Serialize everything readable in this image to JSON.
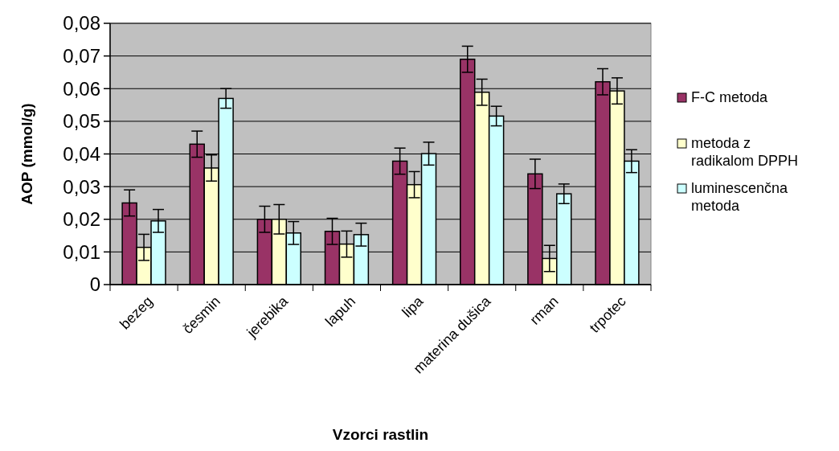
{
  "chart_data": {
    "type": "bar",
    "xlabel": "Vzorci rastlin",
    "ylabel": "AOP (mmol/g)",
    "categories": [
      "bezeg",
      "česmin",
      "jerebika",
      "lapuh",
      "lipa",
      "materina dušica",
      "rman",
      "trpotec"
    ],
    "series": [
      {
        "name": "F-C metoda",
        "color": "#993366",
        "values": [
          0.025,
          0.043,
          0.02,
          0.0163,
          0.0378,
          0.069,
          0.0339,
          0.0621
        ],
        "errors": [
          0.004,
          0.004,
          0.004,
          0.004,
          0.004,
          0.004,
          0.0045,
          0.004
        ]
      },
      {
        "name": "metoda z radikalom DPPH",
        "color": "#ffffcc",
        "values": [
          0.0114,
          0.0357,
          0.02,
          0.0124,
          0.0306,
          0.0589,
          0.008,
          0.0593
        ],
        "errors": [
          0.004,
          0.004,
          0.0045,
          0.004,
          0.004,
          0.004,
          0.004,
          0.004
        ]
      },
      {
        "name": "luminescenčna metoda",
        "color": "#ccffff",
        "values": [
          0.0195,
          0.057,
          0.0158,
          0.0153,
          0.0401,
          0.0516,
          0.0278,
          0.0378
        ],
        "errors": [
          0.0035,
          0.003,
          0.0035,
          0.0035,
          0.0035,
          0.003,
          0.003,
          0.0035
        ]
      }
    ],
    "ylim": [
      0,
      0.08
    ],
    "yticks": [
      0,
      {
        "value": 0.01,
        "label": "0,01"
      },
      {
        "value": 0.02,
        "label": "0,02"
      },
      {
        "value": 0.03,
        "label": "0,03"
      },
      {
        "value": 0.04,
        "label": "0,04"
      },
      {
        "value": 0.05,
        "label": "0,05"
      },
      {
        "value": 0.06,
        "label": "0,06"
      },
      {
        "value": 0.07,
        "label": "0,07"
      },
      {
        "value": 0.08,
        "label": "0,08"
      }
    ],
    "grid": "y",
    "legend": "right"
  }
}
